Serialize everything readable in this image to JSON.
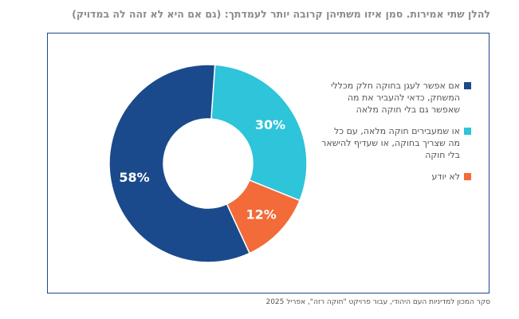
{
  "title": "להלן שתי אמירות. סמן איזו משתיהן קרובה יותר לעמדתך: (גם אם היא לא זהה לה במדויק)",
  "source": "סקר המכון למדיניות העם היהודי, עבור פרויקט \"חוקה רזה\", אפריל 2025",
  "chart_data": {
    "type": "pie",
    "variant": "donut",
    "title": "להלן שתי אמירות. סמן איזו משתיהן קרובה יותר לעמדתך: (גם אם היא לא זהה לה במדויק)",
    "legend_position": "right",
    "slices": [
      {
        "label": "אם אפשר לעגן בחוקה חלק מכללי המשחק, כדאי להעביר את מה שאפשר גם בלי חוקה מלאה",
        "value": 58,
        "display": "58%",
        "color": "#1a4a8c"
      },
      {
        "label": "או שמעבירים חוקה מלאה, עם כל מה שצריך בחוקה, או שעדיף להישאר בלי חוקה",
        "value": 30,
        "display": "30%",
        "color": "#2ec4d9"
      },
      {
        "label": "לא יודע",
        "value": 12,
        "display": "12%",
        "color": "#f26b38"
      }
    ]
  }
}
